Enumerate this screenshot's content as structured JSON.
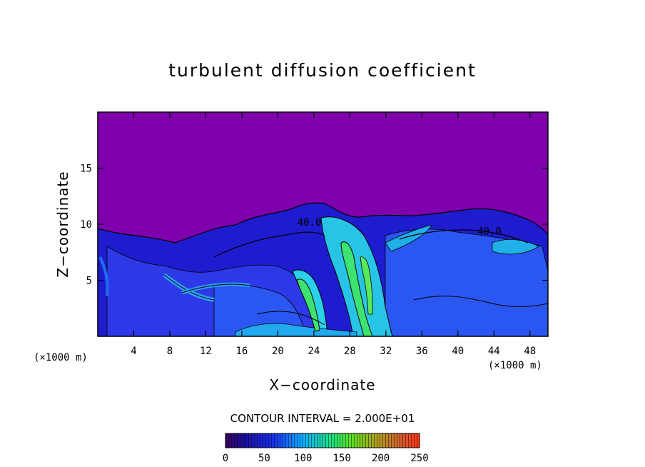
{
  "chart_data": {
    "type": "heatmap",
    "title": "turbulent diffusion coefficient",
    "xlabel": "X−coordinate",
    "ylabel": "Z−coordinate",
    "x_unit": "(×1000 m)",
    "z_unit": "(×1000 m)",
    "xlim": [
      0,
      50
    ],
    "ylim": [
      0,
      20
    ],
    "x_ticks": [
      4,
      8,
      12,
      16,
      20,
      24,
      28,
      32,
      36,
      40,
      44,
      48
    ],
    "y_ticks": [
      5,
      10,
      15
    ],
    "contour_interval_label": "CONTOUR INTERVAL = 2.000E+01",
    "contour_labels": [
      {
        "text": "40.0",
        "x": 23.5,
        "y": 10.2
      },
      {
        "text": "40.0",
        "x": 43.5,
        "y": 9.4
      }
    ],
    "colorbar": {
      "min": 0,
      "max": 250,
      "ticks": [
        0,
        50,
        100,
        150,
        200,
        250
      ]
    },
    "colors": {
      "background_field": "#7f00ad",
      "low": "#1a18d9",
      "mid_low": "#2a5cf0",
      "mid": "#25c3e0",
      "high": "#3ce36e"
    }
  }
}
